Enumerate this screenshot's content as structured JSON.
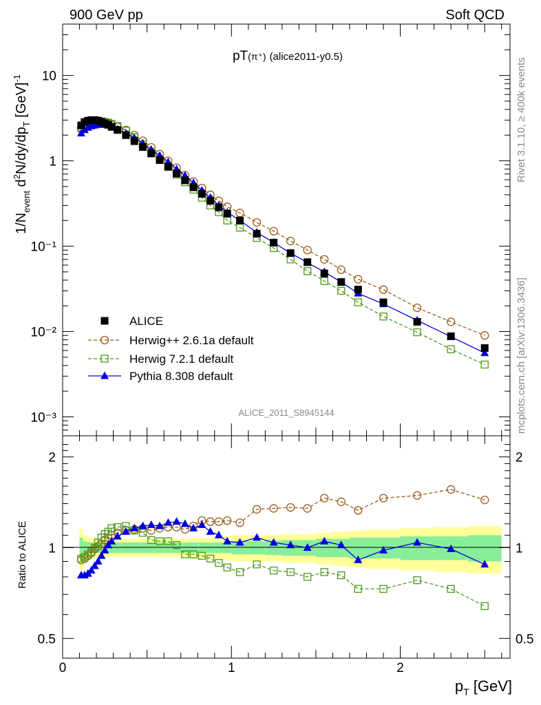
{
  "header": {
    "left": "900 GeV pp",
    "right": "Soft QCD"
  },
  "side": {
    "rivet": "Rivet 3.1.10, ≥ 400k events",
    "mcplots": "mcplots.cern.ch [arXiv:1306.3436]"
  },
  "plot": {
    "title_main": "pT",
    "title_particle": "(π⁺)",
    "title_tag": "(alice2011-y0.5)",
    "analysis_id": "ALICE_2011_S8945144"
  },
  "chart_data": [
    {
      "type": "scatter",
      "panel": "main",
      "title": "pT(π⁺) (alice2011-y0.5)",
      "xlabel": "p_T [GeV]",
      "ylabel": "1/N_event d²N/dy/dp_T [GeV]⁻¹",
      "yscale": "log",
      "xlim": [
        0,
        2.65
      ],
      "ylim": [
        0.0006,
        40
      ],
      "y_ticks": [
        {
          "value": 0.001,
          "label": "10⁻³"
        },
        {
          "value": 0.01,
          "label": "10⁻²"
        },
        {
          "value": 0.1,
          "label": "10⁻¹"
        },
        {
          "value": 1,
          "label": "1"
        },
        {
          "value": 10,
          "label": "10"
        }
      ],
      "legend_position": "lower-left",
      "series": [
        {
          "name": "ALICE",
          "style": "filled-square",
          "color": "#000000",
          "x": [
            0.11,
            0.13,
            0.15,
            0.17,
            0.19,
            0.21,
            0.23,
            0.25,
            0.27,
            0.29,
            0.325,
            0.375,
            0.425,
            0.475,
            0.525,
            0.575,
            0.625,
            0.675,
            0.725,
            0.775,
            0.825,
            0.875,
            0.925,
            0.975,
            1.05,
            1.15,
            1.25,
            1.35,
            1.45,
            1.55,
            1.65,
            1.75,
            1.9,
            2.1,
            2.3,
            2.5
          ],
          "values": [
            2.6,
            2.85,
            2.95,
            3.0,
            3.0,
            2.95,
            2.85,
            2.75,
            2.65,
            2.5,
            2.3,
            2.0,
            1.7,
            1.45,
            1.22,
            1.02,
            0.85,
            0.71,
            0.59,
            0.49,
            0.41,
            0.34,
            0.285,
            0.24,
            0.2,
            0.14,
            0.11,
            0.083,
            0.065,
            0.048,
            0.038,
            0.031,
            0.022,
            0.013,
            0.0088,
            0.0064
          ]
        },
        {
          "name": "Herwig++ 2.6.1a default",
          "style": "open-circle-dashed",
          "color": "#9a5b18",
          "x": [
            0.11,
            0.13,
            0.15,
            0.17,
            0.19,
            0.21,
            0.23,
            0.25,
            0.27,
            0.29,
            0.325,
            0.375,
            0.425,
            0.475,
            0.525,
            0.575,
            0.625,
            0.675,
            0.725,
            0.775,
            0.825,
            0.875,
            0.925,
            0.975,
            1.05,
            1.15,
            1.25,
            1.35,
            1.45,
            1.55,
            1.65,
            1.75,
            1.9,
            2.1,
            2.3,
            2.5
          ],
          "values": [
            2.45,
            2.65,
            2.8,
            2.9,
            2.95,
            2.95,
            2.9,
            2.85,
            2.75,
            2.65,
            2.5,
            2.3,
            2.0,
            1.72,
            1.44,
            1.2,
            1.0,
            0.83,
            0.68,
            0.57,
            0.48,
            0.4,
            0.34,
            0.29,
            0.245,
            0.19,
            0.15,
            0.115,
            0.09,
            0.07,
            0.053,
            0.041,
            0.031,
            0.019,
            0.013,
            0.009
          ]
        },
        {
          "name": "Herwig 7.2.1 default",
          "style": "open-square-dashed",
          "color": "#4a9a1a",
          "x": [
            0.11,
            0.13,
            0.15,
            0.17,
            0.19,
            0.21,
            0.23,
            0.25,
            0.27,
            0.29,
            0.325,
            0.375,
            0.425,
            0.475,
            0.525,
            0.575,
            0.625,
            0.675,
            0.725,
            0.775,
            0.825,
            0.875,
            0.925,
            0.975,
            1.05,
            1.15,
            1.25,
            1.35,
            1.45,
            1.55,
            1.65,
            1.75,
            1.9,
            2.1,
            2.3,
            2.5
          ],
          "values": [
            2.4,
            2.65,
            2.8,
            2.9,
            2.95,
            2.95,
            2.9,
            2.85,
            2.8,
            2.7,
            2.55,
            2.25,
            1.9,
            1.55,
            1.28,
            1.05,
            0.86,
            0.69,
            0.56,
            0.46,
            0.37,
            0.3,
            0.25,
            0.2,
            0.165,
            0.125,
            0.095,
            0.07,
            0.051,
            0.039,
            0.03,
            0.022,
            0.015,
            0.0098,
            0.0062,
            0.0041
          ]
        },
        {
          "name": "Pythia 8.308 default",
          "style": "filled-triangle-solid",
          "color": "#0000dd",
          "x": [
            0.11,
            0.13,
            0.15,
            0.17,
            0.19,
            0.21,
            0.23,
            0.25,
            0.27,
            0.29,
            0.325,
            0.375,
            0.425,
            0.475,
            0.525,
            0.575,
            0.625,
            0.675,
            0.725,
            0.775,
            0.825,
            0.875,
            0.925,
            0.975,
            1.05,
            1.15,
            1.25,
            1.35,
            1.45,
            1.55,
            1.65,
            1.75,
            1.9,
            2.1,
            2.3,
            2.5
          ],
          "values": [
            2.1,
            2.3,
            2.45,
            2.55,
            2.6,
            2.65,
            2.65,
            2.65,
            2.6,
            2.5,
            2.35,
            2.1,
            1.85,
            1.6,
            1.35,
            1.15,
            0.97,
            0.8,
            0.67,
            0.55,
            0.45,
            0.37,
            0.3,
            0.25,
            0.2,
            0.145,
            0.11,
            0.083,
            0.064,
            0.05,
            0.038,
            0.028,
            0.021,
            0.0135,
            0.0087,
            0.0056
          ]
        }
      ]
    },
    {
      "type": "scatter",
      "panel": "ratio",
      "xlabel": "p_T [GeV]",
      "ylabel": "Ratio to ALICE",
      "yscale": "log",
      "xlim": [
        0,
        2.65
      ],
      "ylim": [
        0.43,
        2.35
      ],
      "y_ticks": [
        {
          "value": 0.5,
          "label": "0.5"
        },
        {
          "value": 1,
          "label": "1"
        },
        {
          "value": 2,
          "label": "2"
        }
      ],
      "x_ticks": [
        {
          "value": 0,
          "label": "0"
        },
        {
          "value": 1,
          "label": "1"
        },
        {
          "value": 2,
          "label": "2"
        }
      ],
      "uncertainty_band": {
        "inner_color": "#88ee99",
        "outer_color": "#ffff99",
        "x_edges": [
          0.1,
          0.12,
          0.14,
          0.16,
          0.18,
          0.2,
          0.22,
          0.24,
          0.26,
          0.28,
          0.3,
          0.35,
          0.4,
          0.45,
          0.5,
          0.55,
          0.6,
          0.65,
          0.7,
          0.75,
          0.8,
          0.85,
          0.9,
          0.95,
          1.0,
          1.1,
          1.2,
          1.3,
          1.4,
          1.5,
          1.6,
          1.7,
          1.8,
          2.0,
          2.2,
          2.4,
          2.6
        ],
        "inner_half_width": [
          0.08,
          0.05,
          0.045,
          0.04,
          0.04,
          0.04,
          0.04,
          0.04,
          0.04,
          0.04,
          0.04,
          0.04,
          0.04,
          0.04,
          0.04,
          0.04,
          0.04,
          0.04,
          0.04,
          0.04,
          0.04,
          0.04,
          0.04,
          0.04,
          0.05,
          0.05,
          0.055,
          0.06,
          0.06,
          0.07,
          0.07,
          0.08,
          0.08,
          0.09,
          0.09,
          0.1
        ],
        "outer_half_width": [
          0.16,
          0.1,
          0.09,
          0.08,
          0.08,
          0.07,
          0.07,
          0.07,
          0.07,
          0.07,
          0.07,
          0.07,
          0.07,
          0.07,
          0.07,
          0.07,
          0.07,
          0.07,
          0.07,
          0.08,
          0.08,
          0.08,
          0.08,
          0.09,
          0.1,
          0.1,
          0.1,
          0.11,
          0.11,
          0.12,
          0.13,
          0.14,
          0.15,
          0.16,
          0.17,
          0.18
        ]
      },
      "series": [
        {
          "name": "Herwig++ 2.6.1a default",
          "style": "open-circle-dashed",
          "color": "#9a5b18",
          "x": [
            0.11,
            0.13,
            0.15,
            0.17,
            0.19,
            0.21,
            0.23,
            0.25,
            0.27,
            0.29,
            0.325,
            0.375,
            0.425,
            0.475,
            0.525,
            0.575,
            0.625,
            0.675,
            0.725,
            0.775,
            0.825,
            0.875,
            0.925,
            0.975,
            1.05,
            1.15,
            1.25,
            1.35,
            1.45,
            1.55,
            1.65,
            1.75,
            1.9,
            2.1,
            2.3,
            2.5
          ],
          "values": [
            0.91,
            0.92,
            0.94,
            0.96,
            0.99,
            1.01,
            1.03,
            1.06,
            1.08,
            1.1,
            1.12,
            1.14,
            1.15,
            1.16,
            1.14,
            1.16,
            1.17,
            1.17,
            1.15,
            1.18,
            1.23,
            1.22,
            1.22,
            1.23,
            1.21,
            1.34,
            1.35,
            1.36,
            1.35,
            1.46,
            1.42,
            1.33,
            1.46,
            1.49,
            1.56,
            1.44
          ]
        },
        {
          "name": "Herwig 7.2.1 default",
          "style": "open-square-dashed",
          "color": "#4a9a1a",
          "x": [
            0.11,
            0.13,
            0.15,
            0.17,
            0.19,
            0.21,
            0.23,
            0.25,
            0.27,
            0.29,
            0.325,
            0.375,
            0.425,
            0.475,
            0.525,
            0.575,
            0.625,
            0.675,
            0.725,
            0.775,
            0.825,
            0.875,
            0.925,
            0.975,
            1.05,
            1.15,
            1.25,
            1.35,
            1.45,
            1.55,
            1.65,
            1.75,
            1.9,
            2.1,
            2.3,
            2.5
          ],
          "values": [
            0.92,
            0.93,
            0.95,
            0.97,
            1.0,
            1.04,
            1.08,
            1.11,
            1.13,
            1.16,
            1.17,
            1.18,
            1.14,
            1.12,
            1.06,
            1.05,
            1.05,
            1.02,
            0.95,
            0.95,
            0.94,
            0.92,
            0.89,
            0.86,
            0.83,
            0.88,
            0.84,
            0.83,
            0.8,
            0.83,
            0.81,
            0.73,
            0.73,
            0.78,
            0.73,
            0.64
          ]
        },
        {
          "name": "Pythia 8.308 default",
          "style": "filled-triangle-solid",
          "color": "#0000dd",
          "x": [
            0.11,
            0.13,
            0.15,
            0.17,
            0.19,
            0.21,
            0.23,
            0.25,
            0.27,
            0.29,
            0.325,
            0.375,
            0.425,
            0.475,
            0.525,
            0.575,
            0.625,
            0.675,
            0.725,
            0.775,
            0.825,
            0.875,
            0.925,
            0.975,
            1.05,
            1.15,
            1.25,
            1.35,
            1.45,
            1.55,
            1.65,
            1.75,
            1.9,
            2.1,
            2.3,
            2.5
          ],
          "values": [
            0.81,
            0.81,
            0.82,
            0.84,
            0.87,
            0.9,
            0.94,
            0.98,
            1.02,
            1.05,
            1.09,
            1.13,
            1.16,
            1.18,
            1.19,
            1.18,
            1.21,
            1.22,
            1.2,
            1.16,
            1.19,
            1.13,
            1.1,
            1.05,
            1.04,
            1.08,
            1.04,
            1.02,
            1.0,
            1.05,
            1.02,
            0.91,
            0.98,
            1.04,
            0.99,
            0.88
          ]
        }
      ]
    }
  ]
}
